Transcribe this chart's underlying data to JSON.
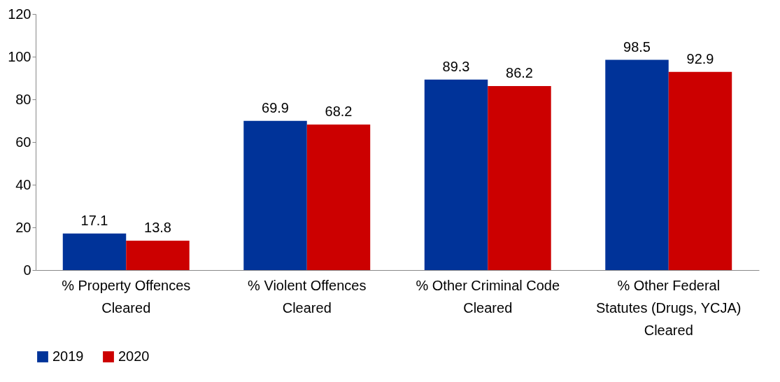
{
  "chart_data": {
    "type": "bar",
    "categories": [
      "% Property Offences Cleared",
      "% Violent Offences Cleared",
      "% Other Criminal Code Cleared",
      "% Other Federal Statutes (Drugs, YCJA) Cleared"
    ],
    "series": [
      {
        "name": "2019",
        "color": "#003399",
        "values": [
          17.1,
          69.9,
          89.3,
          98.5
        ]
      },
      {
        "name": "2020",
        "color": "#cc0000",
        "values": [
          13.8,
          68.2,
          86.2,
          92.9
        ]
      }
    ],
    "ylim": [
      0,
      120
    ],
    "yticks": [
      0,
      20,
      40,
      60,
      80,
      100,
      120
    ],
    "data_labels": true,
    "grid": false,
    "legend": "bottom"
  }
}
